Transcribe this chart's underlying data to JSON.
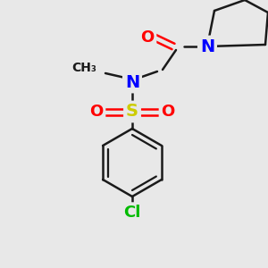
{
  "background_color": "#e8e8e8",
  "figsize": [
    3.0,
    3.0
  ],
  "dpi": 100,
  "colors": {
    "bond": "#1a1a1a",
    "N": "#0000ff",
    "O": "#ff0000",
    "S": "#cccc00",
    "Cl": "#00bb00",
    "C": "#1a1a1a",
    "background": "#e8e8e8"
  },
  "bond_width": 1.8,
  "font_size_atom": 13,
  "font_size_small": 10
}
